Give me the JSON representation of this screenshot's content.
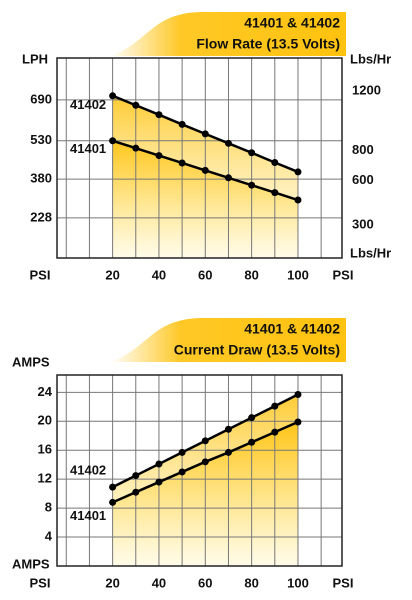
{
  "chart_data": [
    {
      "type": "line",
      "title": "41401 & 41402",
      "subtitle": "Flow Rate (13.5 Volts)",
      "x_label": "PSI",
      "y_label": "LPH",
      "y2_label": "Lbs/Hr",
      "x": [
        20,
        30,
        40,
        50,
        60,
        70,
        80,
        90,
        100
      ],
      "xlim": [
        -4,
        119
      ],
      "xticks": [
        20,
        40,
        60,
        80,
        100
      ],
      "x_minor_ticks": [
        0,
        10,
        30,
        50,
        70,
        90,
        110
      ],
      "ylim": [
        71,
        854
      ],
      "yticks": [
        228,
        380,
        530,
        690
      ],
      "y2lim": [
        78,
        1422
      ],
      "y2ticks": [
        300,
        600,
        800,
        1200
      ],
      "grid": true,
      "series": [
        {
          "name": "41402",
          "color": "#000000",
          "fill_color": "#ffc20e",
          "values": [
            706,
            669,
            632,
            594,
            557,
            520,
            483,
            445,
            408
          ]
        },
        {
          "name": "41401",
          "color": "#000000",
          "fill_color": "#ffc20e",
          "values": [
            530,
            501,
            472,
            443,
            414,
            385,
            356,
            327,
            298
          ]
        }
      ]
    },
    {
      "type": "line",
      "title": "41401 & 41402",
      "subtitle": "Current Draw (13.5 Volts)",
      "x_label": "PSI",
      "y_label": "AMPS",
      "x": [
        20,
        30,
        40,
        50,
        60,
        70,
        80,
        90,
        100
      ],
      "xlim": [
        -4,
        119
      ],
      "xticks": [
        20,
        40,
        60,
        80,
        100
      ],
      "x_minor_ticks": [
        0,
        10,
        30,
        50,
        70,
        90,
        110
      ],
      "ylim": [
        0,
        26.4
      ],
      "yticks": [
        4,
        8,
        12,
        16,
        20,
        24
      ],
      "grid": true,
      "series": [
        {
          "name": "41402",
          "color": "#000000",
          "fill_color": "#ffc20e",
          "values": [
            10.9,
            12.5,
            14.1,
            15.7,
            17.3,
            18.9,
            20.5,
            22.1,
            23.7
          ]
        },
        {
          "name": "41401",
          "color": "#000000",
          "fill_color": "#ffc20e",
          "values": [
            8.8,
            10.2,
            11.6,
            13.0,
            14.4,
            15.7,
            17.1,
            18.5,
            19.9
          ]
        }
      ]
    }
  ]
}
